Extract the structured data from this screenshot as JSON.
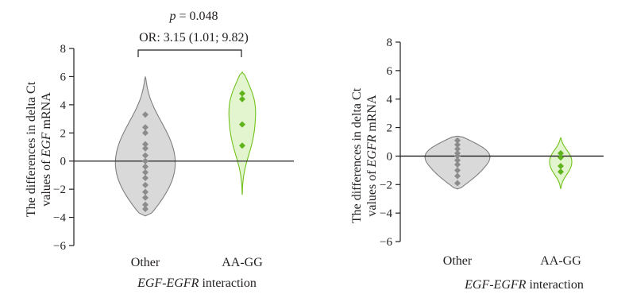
{
  "colors": {
    "other_fill": "#d9d9d9",
    "other_stroke": "#7f7f7f",
    "other_point": "#8c8c8c",
    "aagg_fill": "#e2f5cf",
    "aagg_stroke": "#71c21c",
    "aagg_point": "#5fb31b",
    "axis": "#231f20"
  },
  "chart_data": [
    {
      "type": "violin",
      "xlabel_italic": "EGF-EGFR",
      "xlabel_rest": " interaction",
      "ylabel_line1": "The differences in delta Ct",
      "ylabel_line2_pre": "values of ",
      "ylabel_line2_italic": "EGF",
      "ylabel_line2_post": " mRNA",
      "ylim": [
        -6,
        8
      ],
      "yticks": [
        -6,
        -4,
        -2,
        0,
        2,
        4,
        6,
        8
      ],
      "categories": [
        "Other",
        "AA-GG"
      ],
      "annotation": {
        "p_symbol": "p",
        "p_text": " = 0.048",
        "or_text": "OR: 3.15 (1.01; 9.82)"
      },
      "series": [
        {
          "category": "Other",
          "points": [
            3.3,
            2.4,
            2.0,
            1.2,
            0.9,
            0.4,
            0.0,
            -0.4,
            -0.8,
            -1.2,
            -1.7,
            -2.2,
            -2.6,
            -3.1,
            -3.4
          ],
          "violin": {
            "min": -3.9,
            "max": 6.0
          }
        },
        {
          "category": "AA-GG",
          "points": [
            4.8,
            4.4,
            2.6,
            1.1
          ],
          "violin": {
            "min": -2.4,
            "max": 6.3
          }
        }
      ]
    },
    {
      "type": "violin",
      "xlabel_italic": "EGF-EGFR",
      "xlabel_rest": " interaction",
      "ylabel_line1": "The differences in delta Ct",
      "ylabel_line2_pre": "values of ",
      "ylabel_line2_italic": "EGFR",
      "ylabel_line2_post": " mRNA",
      "ylim": [
        -6,
        8
      ],
      "yticks": [
        -6,
        -4,
        -2,
        0,
        2,
        4,
        6,
        8
      ],
      "categories": [
        "Other",
        "AA-GG"
      ],
      "series": [
        {
          "category": "Other",
          "points": [
            1.1,
            0.8,
            0.5,
            0.2,
            0.0,
            -0.3,
            -0.6,
            -1.0,
            -1.4,
            -1.9
          ],
          "violin": {
            "min": -2.3,
            "max": 1.4
          }
        },
        {
          "category": "AA-GG",
          "points": [
            0.2,
            -0.1,
            -0.7,
            -1.1
          ],
          "violin": {
            "min": -2.3,
            "max": 1.3
          }
        }
      ]
    }
  ]
}
